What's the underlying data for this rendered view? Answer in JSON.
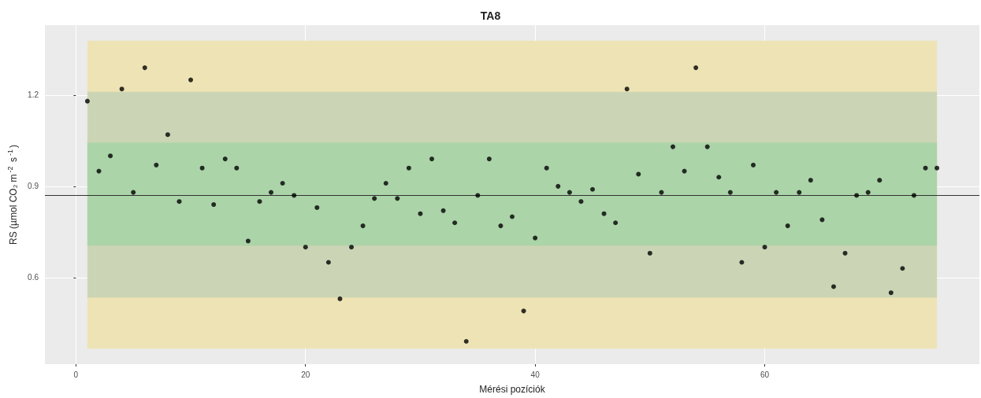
{
  "chart_data": {
    "type": "scatter",
    "title": "TA8",
    "xlabel": "Mérési pozíciók",
    "ylabel": "RS (µmol CO₂ m$^{-2}$ s$^{-1}$)",
    "x": [
      1,
      2,
      3,
      4,
      5,
      6,
      7,
      8,
      9,
      10,
      11,
      12,
      13,
      14,
      15,
      16,
      17,
      18,
      19,
      20,
      21,
      22,
      23,
      24,
      25,
      26,
      27,
      28,
      29,
      30,
      31,
      32,
      33,
      34,
      35,
      36,
      37,
      38,
      39,
      40,
      41,
      42,
      43,
      44,
      45,
      46,
      47,
      48,
      49,
      50,
      51,
      52,
      53,
      54,
      55,
      56,
      57,
      58,
      59,
      60,
      61,
      62,
      63,
      64,
      65,
      66,
      67,
      68,
      69,
      70,
      71,
      72,
      73,
      74,
      75
    ],
    "series": [
      {
        "color": "#000000",
        "values": [
          1.18,
          0.95,
          1.0,
          1.22,
          0.88,
          1.29,
          0.97,
          1.07,
          0.85,
          1.25,
          0.96,
          0.84,
          0.99,
          0.96,
          0.72,
          0.85,
          0.88,
          0.91,
          0.87,
          0.7,
          0.83,
          0.65,
          0.53,
          0.7,
          0.77,
          0.86,
          0.91,
          0.86,
          0.96,
          0.81,
          0.99,
          0.82,
          0.78,
          0.39,
          0.87,
          0.99,
          0.77,
          0.8,
          0.49,
          0.73,
          0.96,
          0.9,
          0.88,
          0.85,
          0.89,
          0.81,
          0.78,
          1.22,
          0.94,
          0.68,
          0.88,
          1.03,
          0.95,
          1.29,
          1.03,
          0.93,
          0.88,
          0.65,
          0.97,
          0.7,
          0.88,
          0.77,
          0.88,
          0.92,
          0.79,
          0.57,
          0.68,
          0.87,
          0.88,
          0.92,
          0.55,
          0.63,
          0.87,
          0.96,
          0.96
        ]
      }
    ],
    "bands": [
      {
        "axis": "y",
        "from": 0.366,
        "to": 1.379,
        "color": "#ede3b5"
      },
      {
        "axis": "y",
        "from": 0.534,
        "to": 1.211,
        "color": "#cbd5b5"
      },
      {
        "axis": "y",
        "from": 0.705,
        "to": 1.044,
        "color": "#abd4a8"
      }
    ],
    "ref_lines": [
      {
        "axis": "y",
        "value": 0.873,
        "color": "#333333"
      }
    ],
    "xlim": [
      -2.7,
      78.7
    ],
    "xticks": [
      0,
      20,
      40,
      60
    ],
    "ylim": [
      0.315,
      1.43
    ],
    "yticks": [
      0.6,
      0.9,
      1.2
    ],
    "grid": true,
    "marker": "circle"
  }
}
